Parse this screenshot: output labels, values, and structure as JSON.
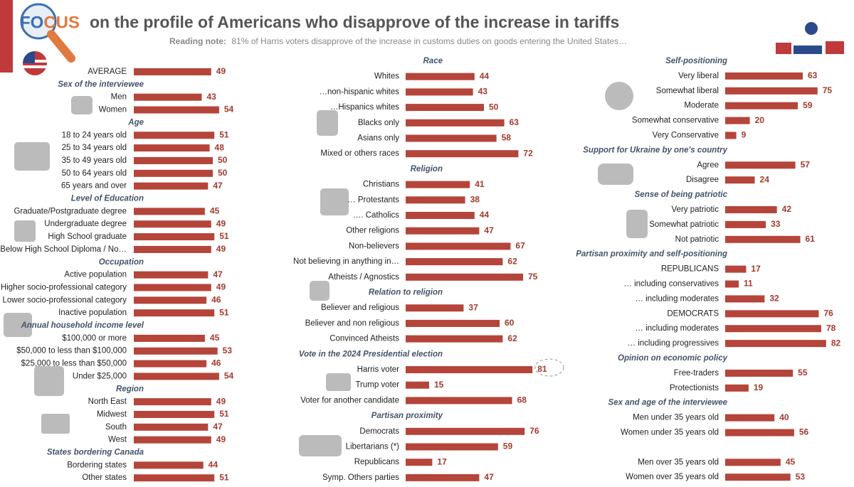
{
  "header": {
    "logo": "FOCUS",
    "title": "on the profile of Americans who disapprove of the increase in tariffs",
    "note_label": "Reading note:",
    "note": "81% of Harris voters disapprove of the increase in customs duties on goods entering the United States…"
  },
  "chart_data": [
    {
      "type": "bar",
      "categories": [
        "AVERAGE"
      ],
      "values": [
        49
      ],
      "color": "#b5453a"
    },
    {
      "type": "bar",
      "title": "Sex of the interviewee",
      "categories": [
        "Men",
        "Women"
      ],
      "values": [
        43,
        54
      ],
      "color": "#b5453a"
    },
    {
      "type": "bar",
      "title": "Age",
      "categories": [
        "18 to 24 years old",
        "25 to 34 years old",
        "35 to 49 years old",
        "50 to 64 years old",
        "65 years and over"
      ],
      "values": [
        51,
        48,
        50,
        50,
        47
      ],
      "color": "#b5453a"
    },
    {
      "type": "bar",
      "title": "Level of Education",
      "categories": [
        "Graduate/Postgraduate degree",
        "Undergraduate degree",
        "High School graduate",
        "Below High School Diploma / No…"
      ],
      "values": [
        45,
        49,
        51,
        49
      ],
      "color": "#b5453a"
    },
    {
      "type": "bar",
      "title": "Occupation",
      "categories": [
        "Active population",
        "Higher socio-professional category",
        "Lower socio-professional category",
        "Inactive population"
      ],
      "values": [
        47,
        49,
        46,
        51
      ],
      "color": "#b5453a"
    },
    {
      "type": "bar",
      "title": "Annual household income level",
      "categories": [
        "$100,000 or more",
        "$50,000 to less than $100,000",
        "$25,000 to less than $50,000",
        "Under $25,000"
      ],
      "values": [
        45,
        53,
        46,
        54
      ],
      "color": "#b5453a"
    },
    {
      "type": "bar",
      "title": "Region",
      "categories": [
        "North East",
        "Midwest",
        "South",
        "West"
      ],
      "values": [
        49,
        51,
        47,
        49
      ],
      "color": "#b5453a"
    },
    {
      "type": "bar",
      "title": "States bordering Canada",
      "categories": [
        "Bordering states",
        "Other states"
      ],
      "values": [
        44,
        51
      ],
      "color": "#b5453a"
    },
    {
      "type": "bar",
      "title": "Race",
      "categories": [
        "Whites",
        "…non-hispanic whites",
        "…Hispanics whites",
        "Blacks only",
        "Asians only",
        "Mixed or others races"
      ],
      "values": [
        44,
        43,
        50,
        63,
        58,
        72
      ],
      "color": "#b5453a"
    },
    {
      "type": "bar",
      "title": "Religion",
      "categories": [
        "Christians",
        "… Protestants",
        "…. Catholics",
        "Other religions",
        "Non-believers",
        "Not believing in anything in…",
        "Atheists / Agnostics"
      ],
      "values": [
        41,
        38,
        44,
        47,
        67,
        62,
        75
      ],
      "color": "#b5453a"
    },
    {
      "type": "bar",
      "title": "Relation to religion",
      "categories": [
        "Believer and religious",
        "Believer and non religious",
        "Convinced Atheists"
      ],
      "values": [
        37,
        60,
        62
      ],
      "color": "#b5453a"
    },
    {
      "type": "bar",
      "title": "Vote in the 2024 Presidential election",
      "categories": [
        "Harris voter",
        "Trump voter",
        "Voter for another candidate"
      ],
      "values": [
        81,
        15,
        68
      ],
      "color": "#b5453a"
    },
    {
      "type": "bar",
      "title": "Partisan proximity",
      "categories": [
        "Democrats",
        "Libertarians (*)",
        "Republicans",
        "Symp. Others parties"
      ],
      "values": [
        76,
        59,
        17,
        47
      ],
      "color": "#b5453a"
    },
    {
      "type": "bar",
      "title": "Self-positioning",
      "categories": [
        "Very liberal",
        "Somewhat liberal",
        "Moderate",
        "Somewhat conservative",
        "Very Conservative"
      ],
      "values": [
        63,
        75,
        59,
        20,
        9
      ],
      "color": "#b5453a"
    },
    {
      "type": "bar",
      "title": "Support for Ukraine by one's country",
      "categories": [
        "Agree",
        "Disagree"
      ],
      "values": [
        57,
        24
      ],
      "color": "#b5453a"
    },
    {
      "type": "bar",
      "title": "Sense of being patriotic",
      "categories": [
        "Very patriotic",
        "Somewhat patriotic",
        "Not patriotic"
      ],
      "values": [
        42,
        33,
        61
      ],
      "color": "#b5453a"
    },
    {
      "type": "bar",
      "title": "Partisan proximity and self-positioning",
      "categories": [
        "REPUBLICANS",
        "… including conservatives",
        "… including moderates",
        "DEMOCRATS",
        "… including moderates",
        "… including progressives"
      ],
      "values": [
        17,
        11,
        32,
        76,
        78,
        82
      ],
      "color": "#b5453a"
    },
    {
      "type": "bar",
      "title": "Opinion on economic policy",
      "categories": [
        "Free-traders",
        "Protectionists"
      ],
      "values": [
        55,
        19
      ],
      "color": "#b5453a"
    },
    {
      "type": "bar",
      "title": "Sex and age of the interviewee",
      "categories": [
        "Men under 35 years old",
        "Women under 35 years old",
        "Men over 35 years old",
        "Women over 35 years old"
      ],
      "values": [
        40,
        56,
        45,
        53
      ],
      "color": "#b5453a"
    }
  ]
}
